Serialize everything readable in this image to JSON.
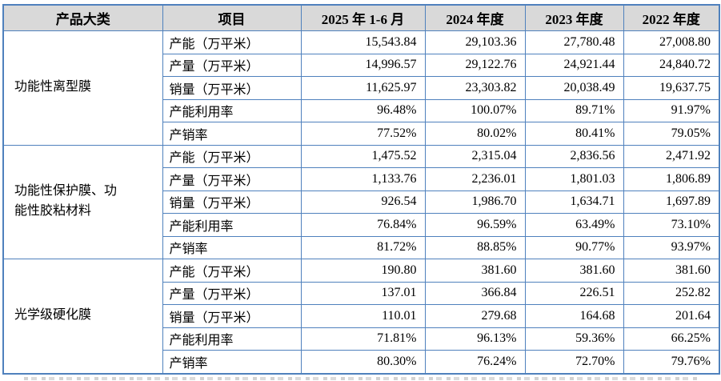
{
  "table": {
    "headers": [
      "产品大类",
      "项目",
      "2025 年 1-6 月",
      "2024 年度",
      "2023 年度",
      "2022 年度"
    ],
    "blocks": [
      {
        "category": "功能性离型膜",
        "rows": [
          {
            "label": "产能（万平米）",
            "values": [
              "15,543.84",
              "29,103.36",
              "27,780.48",
              "27,008.80"
            ]
          },
          {
            "label": "产量（万平米）",
            "values": [
              "14,996.57",
              "29,122.76",
              "24,921.44",
              "24,840.72"
            ]
          },
          {
            "label": "销量（万平米）",
            "values": [
              "11,625.97",
              "23,303.82",
              "20,038.49",
              "19,637.75"
            ]
          },
          {
            "label": "产能利用率",
            "values": [
              "96.48%",
              "100.07%",
              "89.71%",
              "91.97%"
            ]
          },
          {
            "label": "产销率",
            "values": [
              "77.52%",
              "80.02%",
              "80.41%",
              "79.05%"
            ]
          }
        ]
      },
      {
        "category": "功能性保护膜、功能性胶粘材料",
        "rows": [
          {
            "label": "产能（万平米）",
            "values": [
              "1,475.52",
              "2,315.04",
              "2,836.56",
              "2,471.92"
            ]
          },
          {
            "label": "产量（万平米）",
            "values": [
              "1,133.76",
              "2,236.01",
              "1,801.03",
              "1,806.89"
            ]
          },
          {
            "label": "销量（万平米）",
            "values": [
              "926.54",
              "1,986.70",
              "1,634.71",
              "1,697.89"
            ]
          },
          {
            "label": "产能利用率",
            "values": [
              "76.84%",
              "96.59%",
              "63.49%",
              "73.10%"
            ]
          },
          {
            "label": "产销率",
            "values": [
              "81.72%",
              "88.85%",
              "90.77%",
              "93.97%"
            ]
          }
        ]
      },
      {
        "category": "光学级硬化膜",
        "rows": [
          {
            "label": "产能（万平米）",
            "values": [
              "190.80",
              "381.60",
              "381.60",
              "381.60"
            ]
          },
          {
            "label": "产量（万平米）",
            "values": [
              "137.01",
              "366.84",
              "226.51",
              "252.82"
            ]
          },
          {
            "label": "销量（万平米）",
            "values": [
              "110.01",
              "279.68",
              "164.68",
              "201.64"
            ]
          },
          {
            "label": "产能利用率",
            "values": [
              "71.81%",
              "96.13%",
              "59.36%",
              "66.25%"
            ]
          },
          {
            "label": "产销率",
            "values": [
              "80.30%",
              "76.24%",
              "72.70%",
              "79.76%"
            ]
          }
        ]
      }
    ],
    "colors": {
      "border": "#4f81bd",
      "header_bg": "#d9d9d9",
      "text": "#000000"
    }
  }
}
